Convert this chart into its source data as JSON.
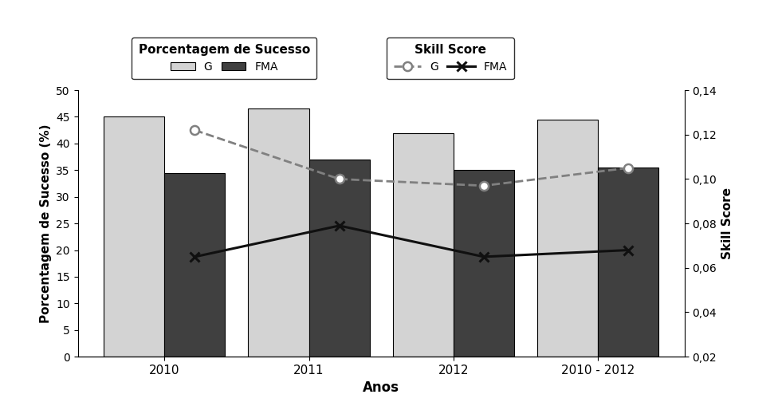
{
  "categories": [
    "2010",
    "2011",
    "2012",
    "2010 - 2012"
  ],
  "bar_G": [
    45,
    46.5,
    42,
    44.5
  ],
  "bar_FMA": [
    34.5,
    37,
    35,
    35.5
  ],
  "bar_color_G": "#d3d3d3",
  "bar_color_FMA": "#404040",
  "line_skill_G": [
    0.122,
    0.1,
    0.097,
    0.105
  ],
  "line_skill_FMA": [
    0.065,
    0.079,
    0.065,
    0.068
  ],
  "ylabel_left": "Porcentagem de Sucesso (%)",
  "ylabel_right": "Skill Score",
  "xlabel": "Anos",
  "ylim_left": [
    0,
    50
  ],
  "ylim_right": [
    0.02,
    0.14
  ],
  "yticks_left": [
    0,
    5,
    10,
    15,
    20,
    25,
    30,
    35,
    40,
    45,
    50
  ],
  "yticks_right": [
    0.02,
    0.04,
    0.06,
    0.08,
    0.1,
    0.12,
    0.14
  ],
  "ytick_labels_right": [
    "0,02",
    "0,04",
    "0,06",
    "0,08",
    "0,10",
    "0,12",
    "0,14"
  ],
  "legend1_title": "Porcentagem de Sucesso",
  "legend2_title": "Skill Score",
  "background_color": "#ffffff",
  "bar_width": 0.42,
  "line_color_G": "#808080",
  "line_color_FMA": "#101010",
  "figsize": [
    9.76,
    5.14
  ],
  "dpi": 100
}
